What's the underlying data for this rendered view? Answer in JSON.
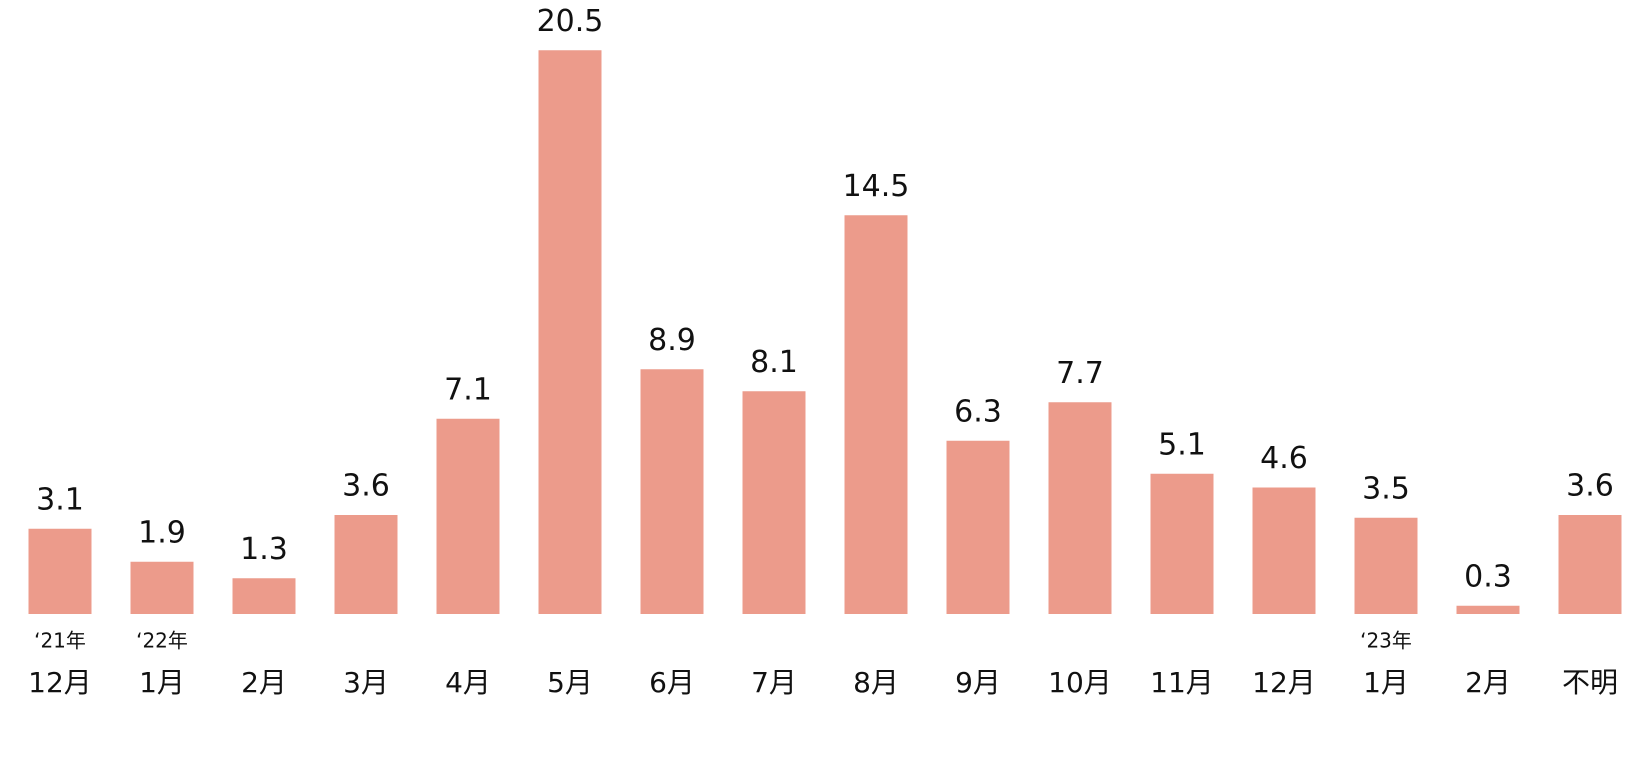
{
  "chart_data": {
    "type": "bar",
    "categories": [
      "12月",
      "1月",
      "2月",
      "3月",
      "4月",
      "5月",
      "6月",
      "7月",
      "8月",
      "9月",
      "10月",
      "11月",
      "12月",
      "1月",
      "2月",
      "不明"
    ],
    "year_labels": [
      "‘21年",
      "‘22年",
      null,
      null,
      null,
      null,
      null,
      null,
      null,
      null,
      null,
      null,
      null,
      "‘23年",
      null,
      null
    ],
    "values": [
      3.1,
      1.9,
      1.3,
      3.6,
      7.1,
      20.5,
      8.9,
      8.1,
      14.5,
      6.3,
      7.7,
      5.1,
      4.6,
      3.5,
      0.3,
      3.6
    ],
    "color": "#ec9b8b"
  }
}
